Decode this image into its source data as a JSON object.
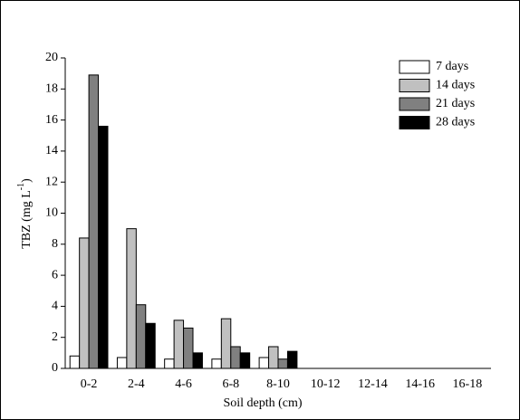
{
  "chart_data": {
    "type": "bar",
    "categories": [
      "0-2",
      "2-4",
      "4-6",
      "6-8",
      "8-10",
      "10-12",
      "12-14",
      "14-16",
      "16-18"
    ],
    "series": [
      {
        "name": "7 days",
        "color": "#ffffff",
        "values": [
          0.8,
          0.7,
          0.6,
          0.6,
          0.7,
          0,
          0,
          0,
          0
        ]
      },
      {
        "name": "14 days",
        "color": "#c0c0c0",
        "values": [
          8.4,
          9.0,
          3.1,
          3.2,
          1.4,
          0,
          0,
          0,
          0
        ]
      },
      {
        "name": "21 days",
        "color": "#808080",
        "values": [
          18.9,
          4.1,
          2.6,
          1.4,
          0.6,
          0,
          0,
          0,
          0
        ]
      },
      {
        "name": "28 days",
        "color": "#000000",
        "values": [
          15.6,
          2.9,
          1.0,
          1.0,
          1.1,
          0,
          0,
          0,
          0
        ]
      }
    ],
    "xlabel": "Soil depth (cm)",
    "ylabel": {
      "text": "TBZ (mg L",
      "sup": "-1",
      "end": ")"
    },
    "ylim": [
      0,
      20
    ],
    "yticks": [
      0,
      2,
      4,
      6,
      8,
      10,
      12,
      14,
      16,
      18,
      20
    ],
    "legend": "top-right"
  }
}
